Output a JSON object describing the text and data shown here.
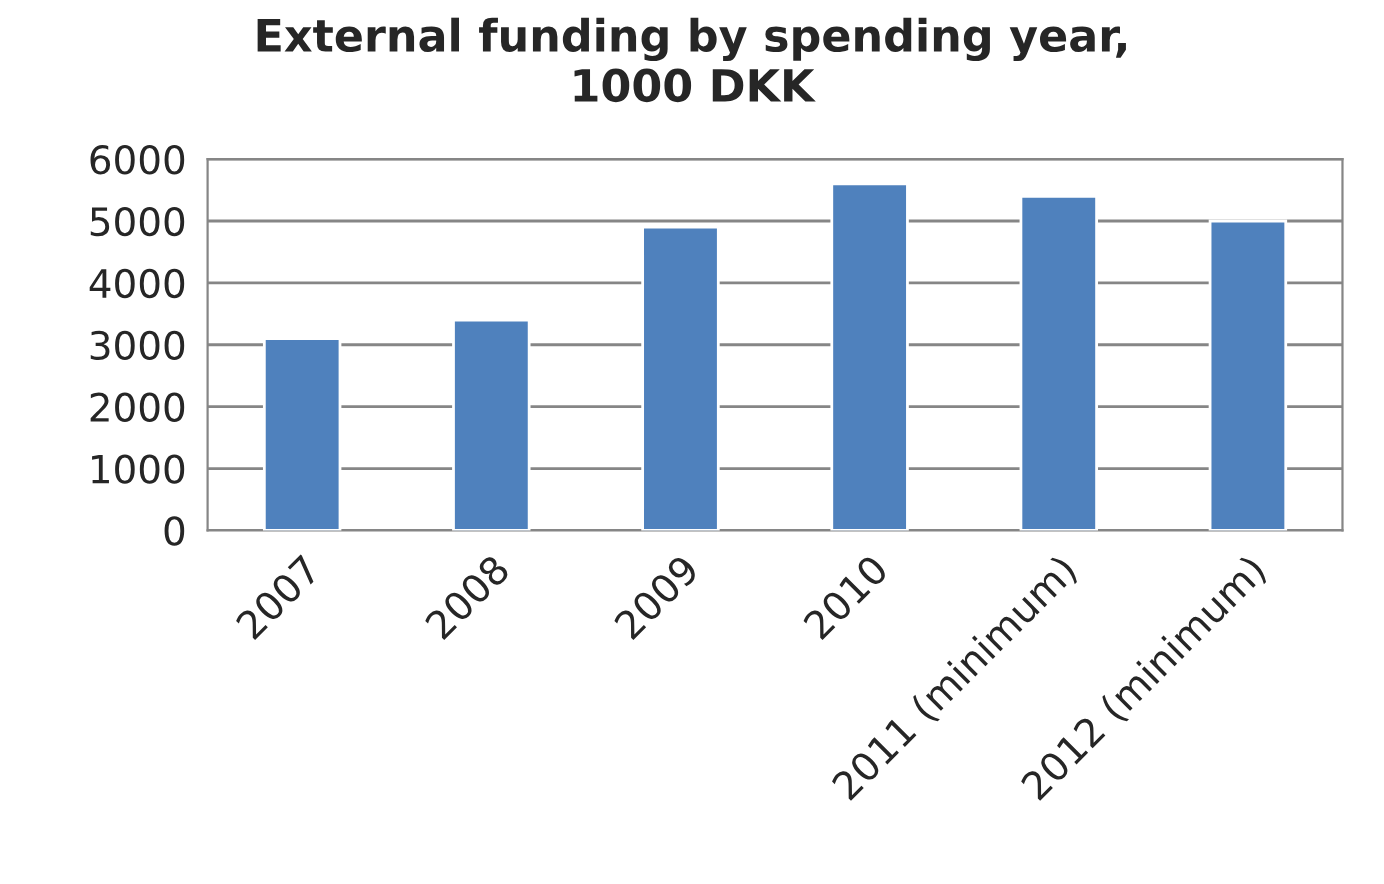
{
  "chart_data": {
    "type": "bar",
    "title": "External funding by spending year,\n1000 DKK",
    "categories": [
      "2007",
      "2008",
      "2009",
      "2010",
      "2011 (minimum)",
      "2012 (minimum)"
    ],
    "values": [
      3100,
      3400,
      4900,
      5600,
      5400,
      5000
    ],
    "color": "#4f81bd",
    "ylim": [
      0,
      6000
    ],
    "yticks": [
      0,
      1000,
      2000,
      3000,
      4000,
      5000,
      6000
    ],
    "grid": "y",
    "legend": false
  }
}
